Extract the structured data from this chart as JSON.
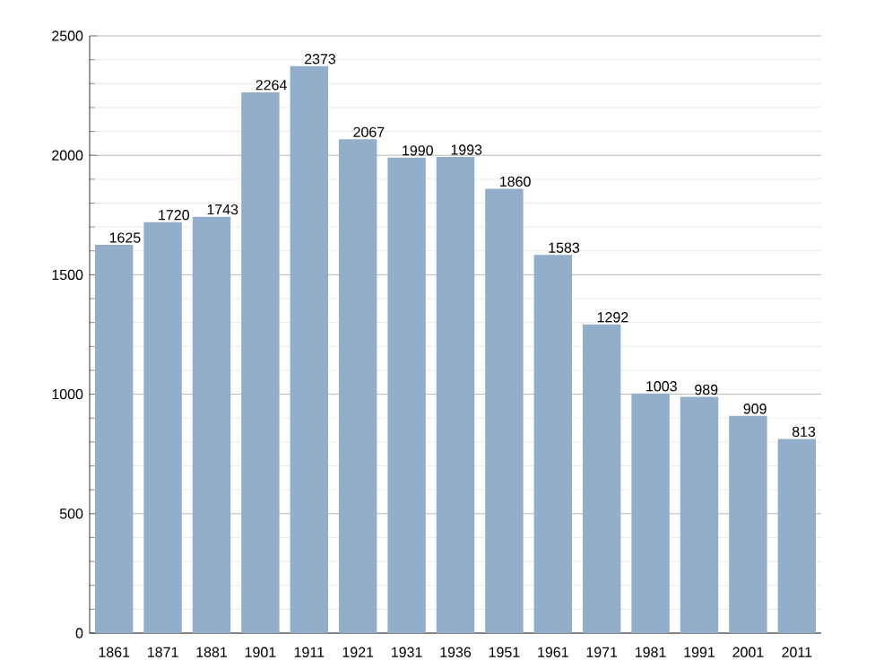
{
  "chart_data": {
    "type": "bar",
    "categories": [
      "1861",
      "1871",
      "1881",
      "1901",
      "1911",
      "1921",
      "1931",
      "1936",
      "1951",
      "1961",
      "1971",
      "1981",
      "1991",
      "2001",
      "2011"
    ],
    "values": [
      1625,
      1720,
      1743,
      2264,
      2373,
      2067,
      1990,
      1993,
      1860,
      1583,
      1292,
      1003,
      989,
      909,
      813
    ],
    "color": "#93aecb",
    "ylim": [
      0,
      2500
    ],
    "yticks": [
      0,
      500,
      1000,
      1500,
      2000,
      2500
    ],
    "grid": "y",
    "data_labels": true
  }
}
